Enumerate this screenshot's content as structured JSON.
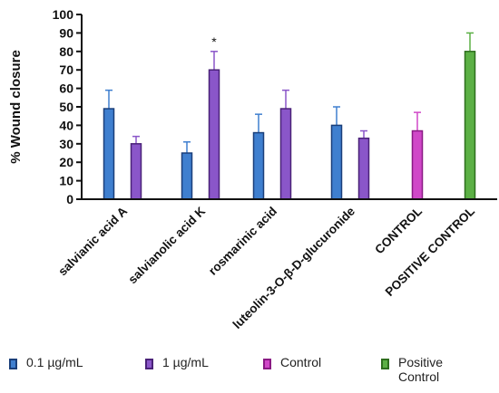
{
  "chart_data": {
    "type": "bar",
    "ylabel": "% Wound closure",
    "xlabel": "",
    "ylim": [
      0,
      100
    ],
    "yticks": [
      0,
      10,
      20,
      30,
      40,
      50,
      60,
      70,
      80,
      90,
      100
    ],
    "grid": false,
    "legend_position": "bottom",
    "groups": [
      {
        "label": "salvianic acid A",
        "bars": [
          {
            "series": "0.1 µg/mL",
            "value": 49,
            "error": 10
          },
          {
            "series": "1 µg/mL",
            "value": 30,
            "error": 4
          }
        ]
      },
      {
        "label": "salvianolic acid K",
        "bars": [
          {
            "series": "0.1 µg/mL",
            "value": 25,
            "error": 6
          },
          {
            "series": "1 µg/mL",
            "value": 70,
            "error": 10,
            "annotation": "*"
          }
        ]
      },
      {
        "label": "rosmarinic acid",
        "bars": [
          {
            "series": "0.1 µg/mL",
            "value": 36,
            "error": 10
          },
          {
            "series": "1 µg/mL",
            "value": 49,
            "error": 10
          }
        ]
      },
      {
        "label": "luteolin-3-O-β-D-glucuronide",
        "bars": [
          {
            "series": "0.1 µg/mL",
            "value": 40,
            "error": 10
          },
          {
            "series": "1 µg/mL",
            "value": 33,
            "error": 4
          }
        ]
      },
      {
        "label": "CONTROL",
        "bars": [
          {
            "series": "Control",
            "value": 37,
            "error": 10
          }
        ]
      },
      {
        "label": "POSITIVE CONTROL",
        "bars": [
          {
            "series": "Positive Control",
            "value": 80,
            "error": 10
          }
        ]
      }
    ],
    "series": [
      {
        "name": "0.1 µg/mL",
        "fill": "#3f7fcf",
        "stroke": "#1a3f7a"
      },
      {
        "name": "1 µg/mL",
        "fill": "#8a56c9",
        "stroke": "#4a2278"
      },
      {
        "name": "Control",
        "fill": "#d048c8",
        "stroke": "#8a1a84"
      },
      {
        "name": "Positive Control",
        "fill": "#5cb045",
        "stroke": "#2e6e1e"
      }
    ]
  },
  "legend": [
    {
      "label": "0.1 µg/mL"
    },
    {
      "label": "1 µg/mL"
    },
    {
      "label": "Control"
    },
    {
      "label": "Positive\nControl"
    }
  ]
}
